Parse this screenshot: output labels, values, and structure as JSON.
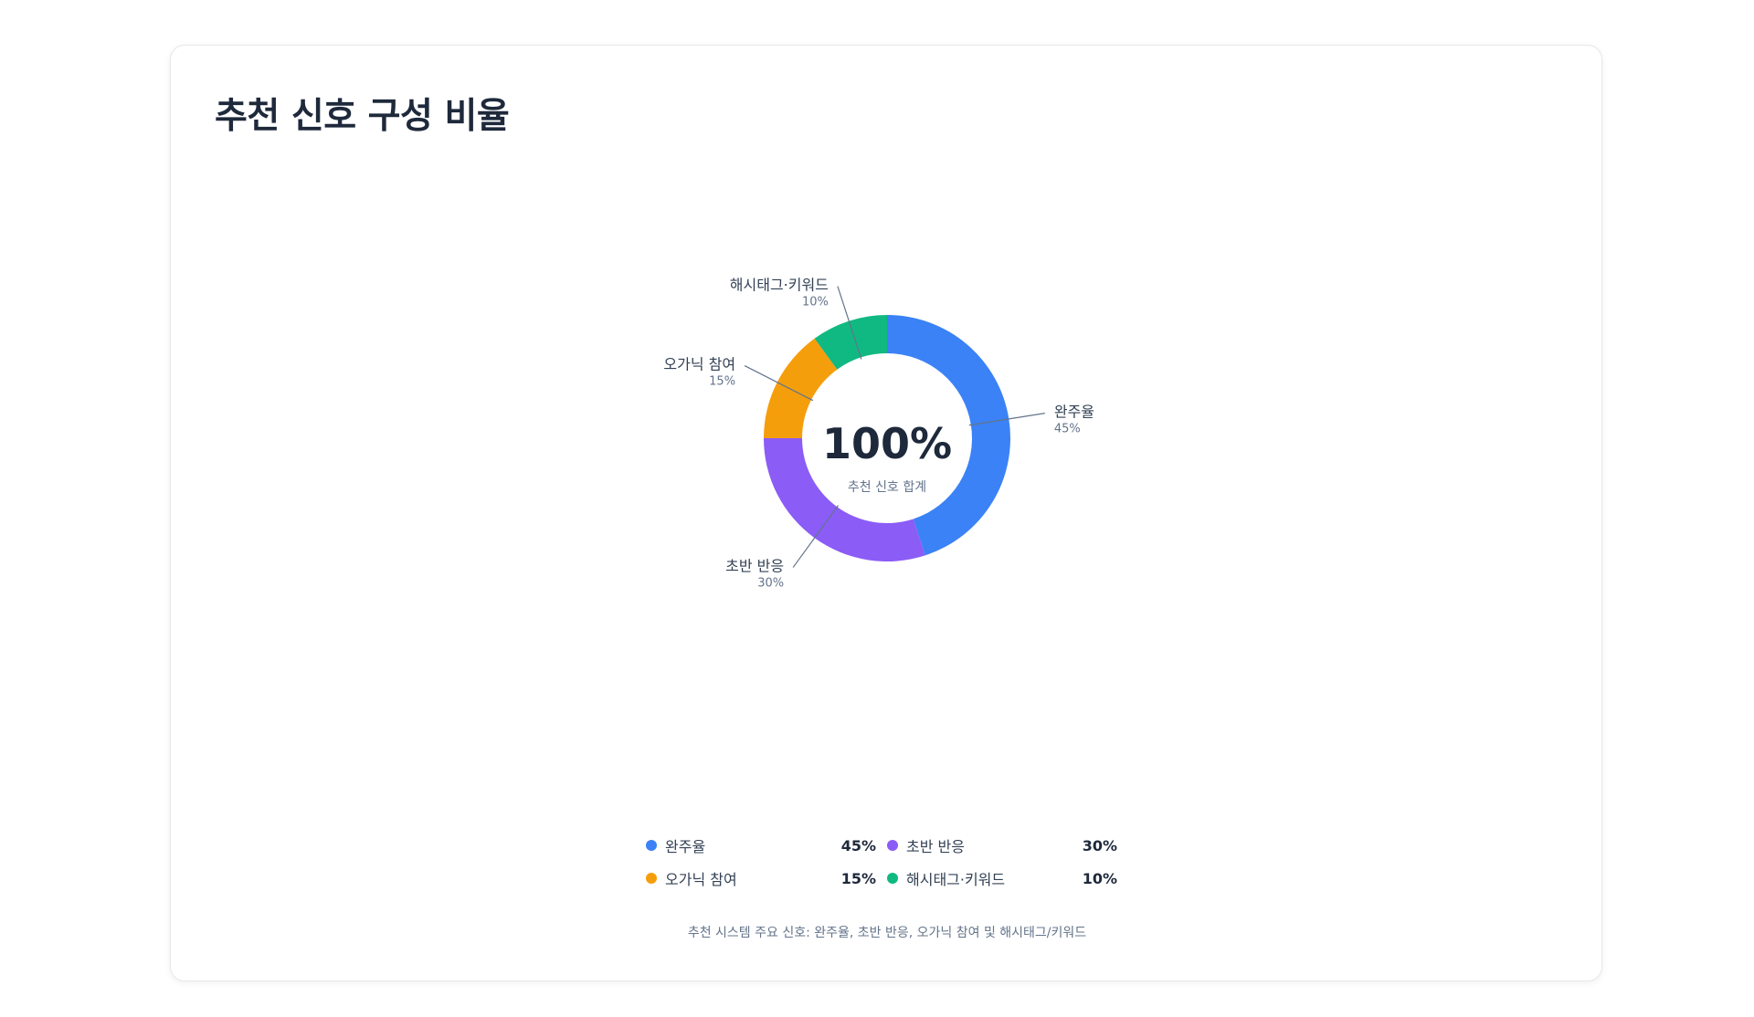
{
  "title": "추천 신호 구성 비율",
  "caption": "추천 시스템 주요 신호: 완주율, 초반 반응, 오가닉 참여 및 해시태그/키워드",
  "chart_data": {
    "type": "pie",
    "donut": true,
    "title": "추천 신호 구성 비율",
    "center_value": "100%",
    "center_label": "추천 신호 합계",
    "legend_position": "bottom",
    "slices": [
      {
        "name": "완주율",
        "value": 45,
        "label": "45%",
        "color": "#3b82f6"
      },
      {
        "name": "초반 반응",
        "value": 30,
        "label": "30%",
        "color": "#8b5cf6"
      },
      {
        "name": "오가닉 참여",
        "value": 15,
        "label": "15%",
        "color": "#f59e0b"
      },
      {
        "name": "해시태그·키워드",
        "value": 10,
        "label": "10%",
        "color": "#10b981"
      }
    ]
  }
}
